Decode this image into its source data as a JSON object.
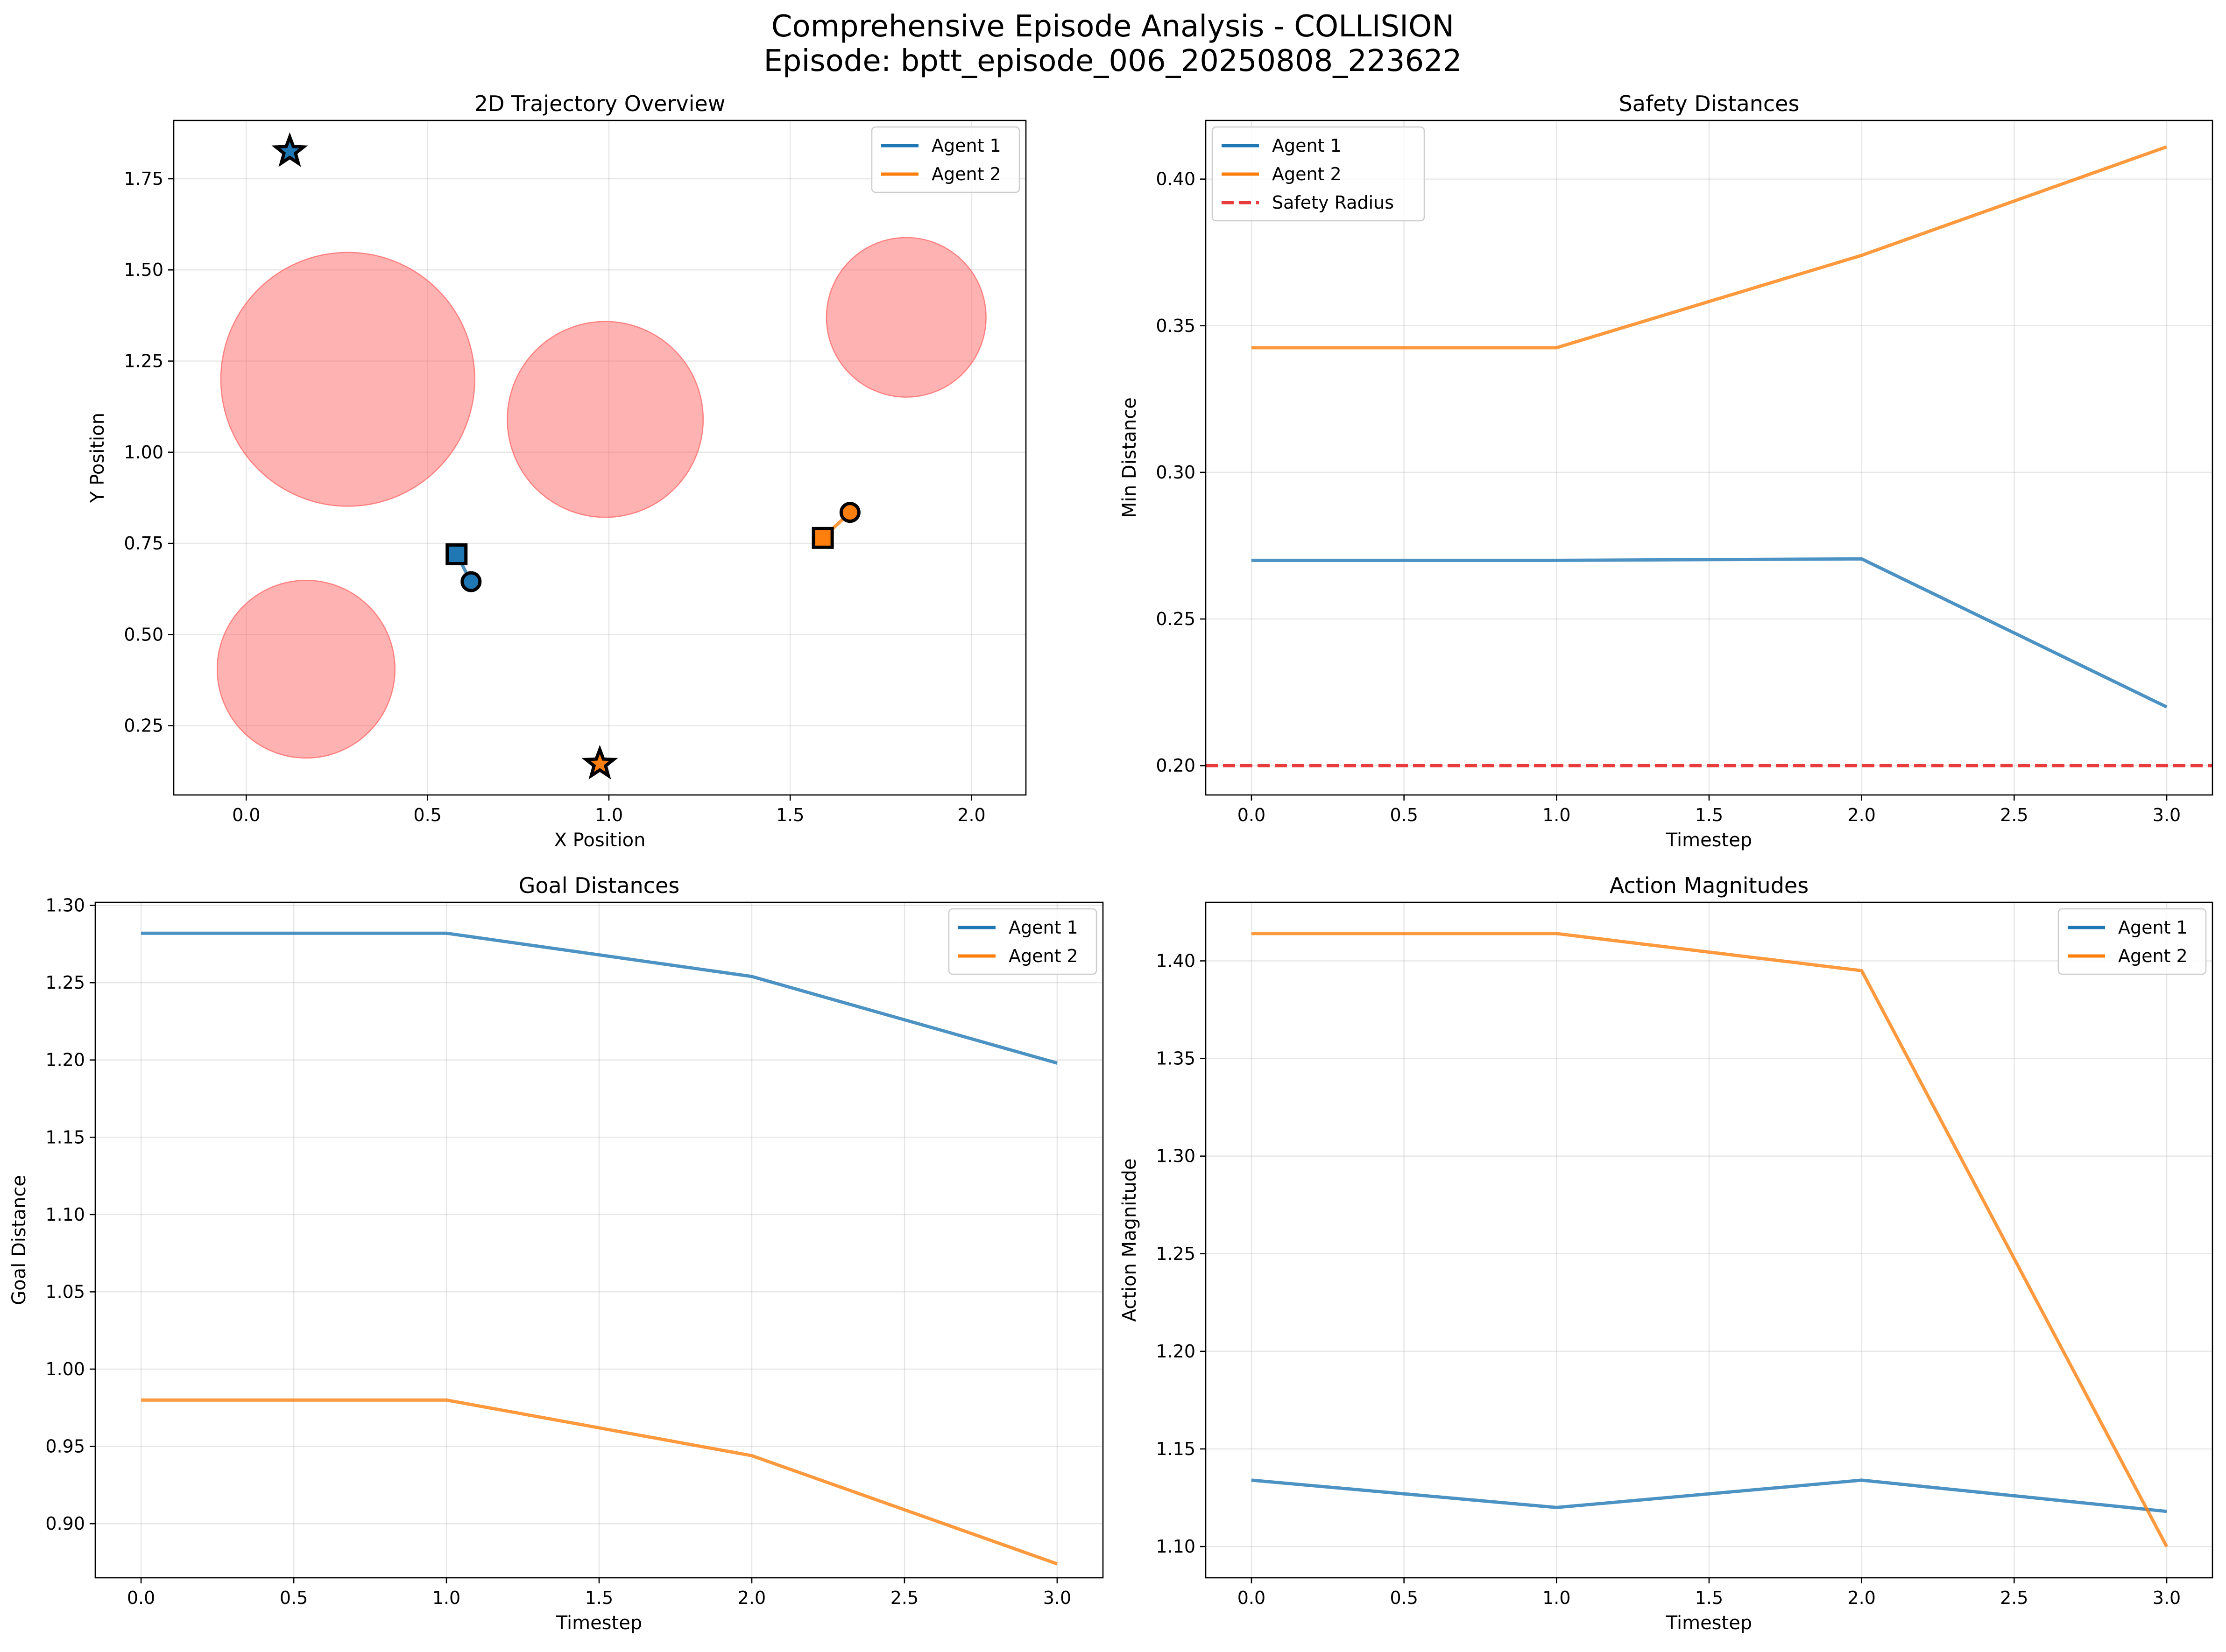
{
  "title_line1": "Comprehensive Episode Analysis - COLLISION",
  "title_line2": "Episode: bptt_episode_006_20250808_223622",
  "colors": {
    "agent1": "#1f77b4",
    "agent2": "#ff7f0e",
    "obstacle": "#ff6b6b",
    "safety": "#e83b3b"
  },
  "chart_data": [
    {
      "id": "traj",
      "type": "scatter",
      "title": "2D Trajectory Overview",
      "xlabel": "X Position",
      "ylabel": "Y Position",
      "xlim": [
        -0.2,
        2.15
      ],
      "ylim": [
        0.06,
        1.91
      ],
      "xticks": [
        0.0,
        0.5,
        1.0,
        1.5,
        2.0
      ],
      "xtick_labels": [
        "0.0",
        "0.5",
        "1.0",
        "1.5",
        "2.0"
      ],
      "yticks": [
        0.25,
        0.5,
        0.75,
        1.0,
        1.25,
        1.5,
        1.75
      ],
      "ytick_labels": [
        "0.25",
        "0.50",
        "0.75",
        "1.00",
        "1.25",
        "1.50",
        "1.75"
      ],
      "legend_position": "top-right",
      "legend": [
        "Agent 1",
        "Agent 2"
      ],
      "obstacles": [
        {
          "cx": 0.28,
          "cy": 1.2,
          "r": 0.35
        },
        {
          "cx": 0.99,
          "cy": 1.09,
          "r": 0.27
        },
        {
          "cx": 1.82,
          "cy": 1.37,
          "r": 0.22
        },
        {
          "cx": 0.165,
          "cy": 0.405,
          "r": 0.245
        }
      ],
      "agents": [
        {
          "name": "Agent 1",
          "path": [
            [
              0.58,
              0.72
            ],
            [
              0.62,
              0.645
            ]
          ],
          "start": [
            0.58,
            0.72
          ],
          "current": [
            0.62,
            0.645
          ],
          "goal": [
            0.12,
            1.825
          ]
        },
        {
          "name": "Agent 2",
          "path": [
            [
              1.59,
              0.765
            ],
            [
              1.665,
              0.835
            ]
          ],
          "start": [
            1.59,
            0.765
          ],
          "current": [
            1.665,
            0.835
          ],
          "goal": [
            0.975,
            0.145
          ]
        }
      ]
    },
    {
      "id": "safety",
      "type": "line",
      "title": "Safety Distances",
      "xlabel": "Timestep",
      "ylabel": "Min Distance",
      "xlim": [
        -0.15,
        3.15
      ],
      "ylim": [
        0.19,
        0.42
      ],
      "xticks": [
        0.0,
        0.5,
        1.0,
        1.5,
        2.0,
        2.5,
        3.0
      ],
      "xtick_labels": [
        "0.0",
        "0.5",
        "1.0",
        "1.5",
        "2.0",
        "2.5",
        "3.0"
      ],
      "yticks": [
        0.2,
        0.25,
        0.3,
        0.35,
        0.4
      ],
      "ytick_labels": [
        "0.20",
        "0.25",
        "0.30",
        "0.35",
        "0.40"
      ],
      "legend_position": "top-left",
      "x": [
        0,
        1,
        2,
        3
      ],
      "series": [
        {
          "name": "Agent 1",
          "values": [
            0.27,
            0.27,
            0.2705,
            0.22
          ]
        },
        {
          "name": "Agent 2",
          "values": [
            0.3425,
            0.3425,
            0.374,
            0.411
          ]
        }
      ],
      "hline": {
        "name": "Safety Radius",
        "value": 0.2
      }
    },
    {
      "id": "goal",
      "type": "line",
      "title": "Goal Distances",
      "xlabel": "Timestep",
      "ylabel": "Goal Distance",
      "xlim": [
        -0.15,
        3.15
      ],
      "ylim": [
        0.865,
        1.302
      ],
      "xticks": [
        0.0,
        0.5,
        1.0,
        1.5,
        2.0,
        2.5,
        3.0
      ],
      "xtick_labels": [
        "0.0",
        "0.5",
        "1.0",
        "1.5",
        "2.0",
        "2.5",
        "3.0"
      ],
      "yticks": [
        0.9,
        0.95,
        1.0,
        1.05,
        1.1,
        1.15,
        1.2,
        1.25,
        1.3
      ],
      "ytick_labels": [
        "0.90",
        "0.95",
        "1.00",
        "1.05",
        "1.10",
        "1.15",
        "1.20",
        "1.25",
        "1.30"
      ],
      "legend_position": "top-right",
      "x": [
        0,
        1,
        2,
        3
      ],
      "series": [
        {
          "name": "Agent 1",
          "values": [
            1.282,
            1.282,
            1.254,
            1.198
          ]
        },
        {
          "name": "Agent 2",
          "values": [
            0.98,
            0.98,
            0.944,
            0.874
          ]
        }
      ]
    },
    {
      "id": "action",
      "type": "line",
      "title": "Action Magnitudes",
      "xlabel": "Timestep",
      "ylabel": "Action Magnitude",
      "xlim": [
        -0.15,
        3.15
      ],
      "ylim": [
        1.084,
        1.43
      ],
      "xticks": [
        0.0,
        0.5,
        1.0,
        1.5,
        2.0,
        2.5,
        3.0
      ],
      "xtick_labels": [
        "0.0",
        "0.5",
        "1.0",
        "1.5",
        "2.0",
        "2.5",
        "3.0"
      ],
      "yticks": [
        1.1,
        1.15,
        1.2,
        1.25,
        1.3,
        1.35,
        1.4
      ],
      "ytick_labels": [
        "1.10",
        "1.15",
        "1.20",
        "1.25",
        "1.30",
        "1.35",
        "1.40"
      ],
      "legend_position": "top-right",
      "x": [
        0,
        1,
        2,
        3
      ],
      "series": [
        {
          "name": "Agent 1",
          "values": [
            1.134,
            1.12,
            1.134,
            1.118
          ]
        },
        {
          "name": "Agent 2",
          "values": [
            1.414,
            1.414,
            1.395,
            1.1
          ]
        }
      ]
    }
  ]
}
